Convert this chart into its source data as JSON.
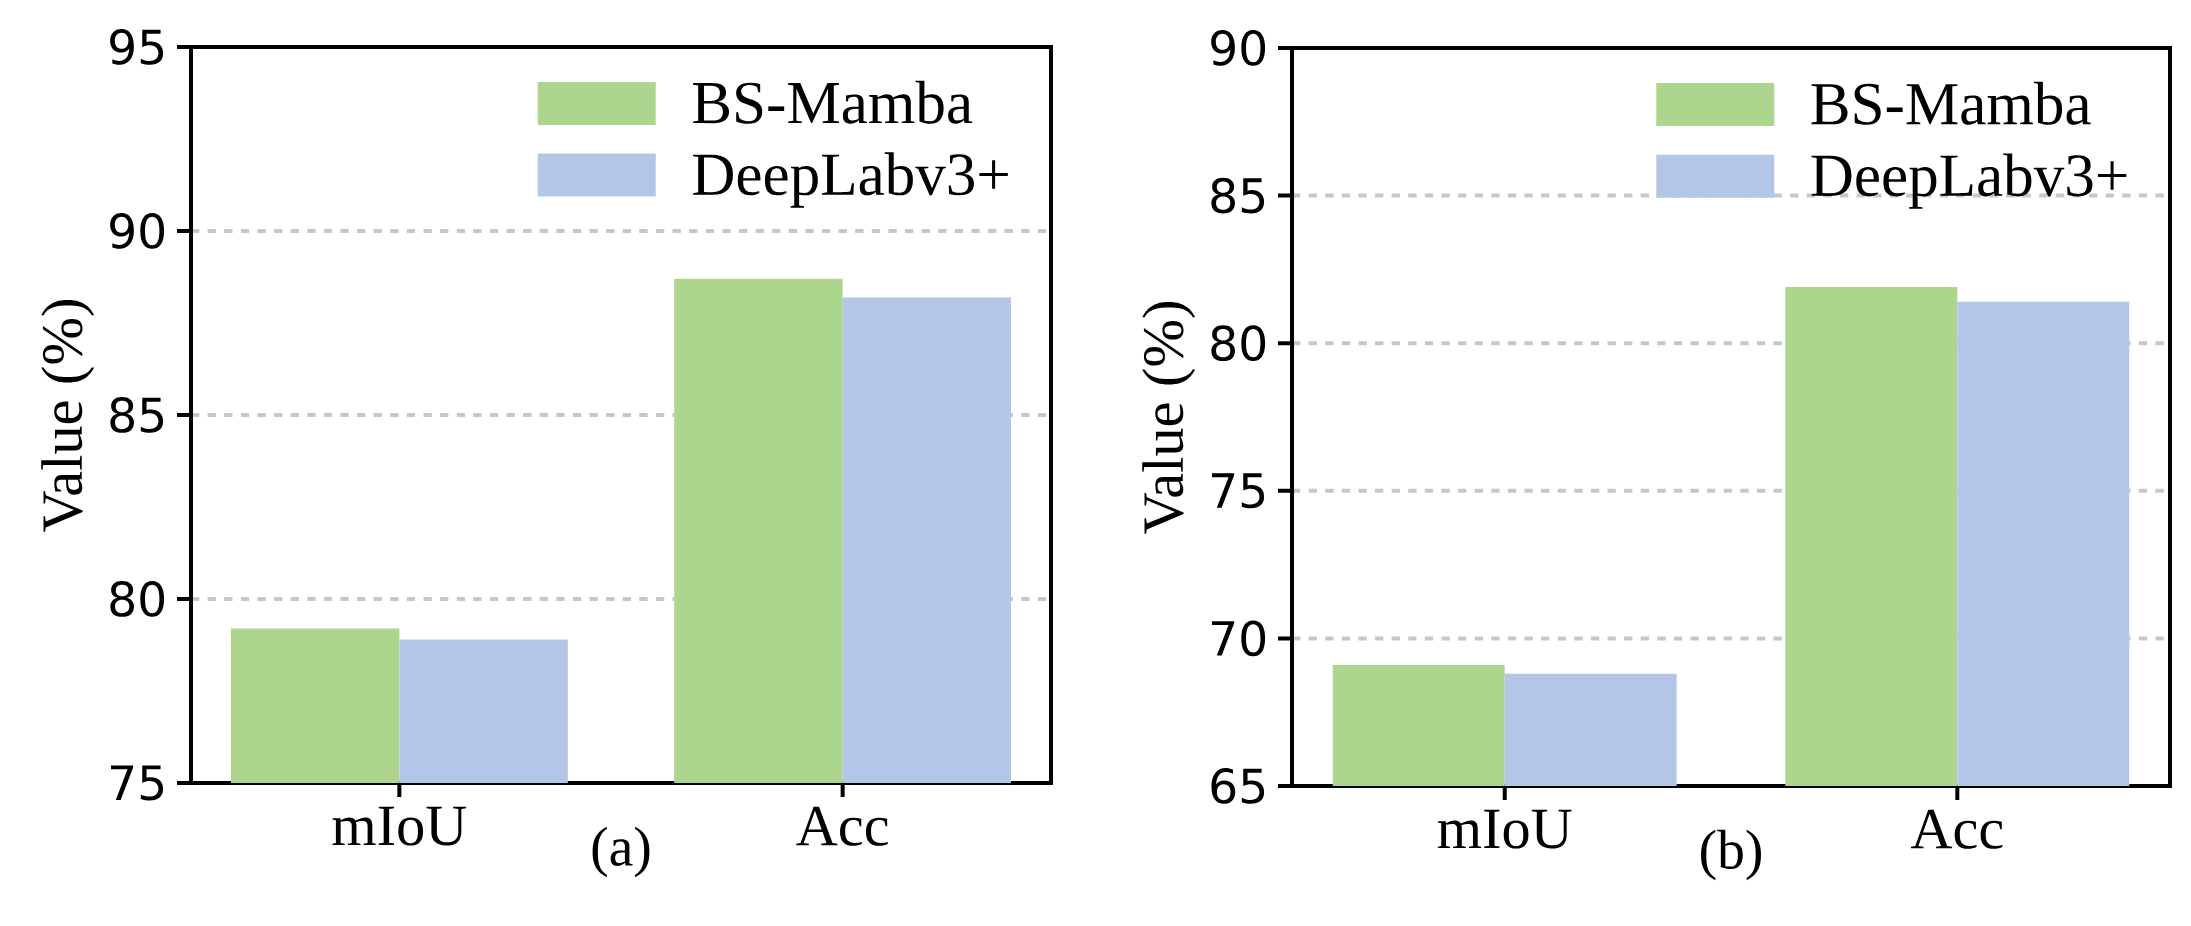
{
  "chart_data": [
    {
      "type": "bar",
      "categories": [
        "mIoU",
        "Acc"
      ],
      "xlabel": "(a)",
      "ylabel": "Value (%)",
      "ylim": [
        75,
        95
      ],
      "yticks": [
        75,
        80,
        85,
        90,
        95
      ],
      "grid": "y",
      "legend": "top right",
      "series": [
        {
          "name": "BS-Mamba",
          "color": "#acd68e",
          "values": [
            79.2,
            88.7
          ]
        },
        {
          "name": "DeepLabv3+",
          "color": "#b4c6e7",
          "values": [
            78.9,
            88.2
          ]
        }
      ]
    },
    {
      "type": "bar",
      "categories": [
        "mIoU",
        "Acc"
      ],
      "xlabel": "(b)",
      "ylabel": "Value (%)",
      "ylim": [
        65,
        90
      ],
      "yticks": [
        65,
        70,
        75,
        80,
        85,
        90
      ],
      "grid": "y",
      "legend": "top right",
      "series": [
        {
          "name": "BS-Mamba",
          "color": "#acd68e",
          "values": [
            69.1,
            81.9
          ]
        },
        {
          "name": "DeepLabv3+",
          "color": "#b4c6e7",
          "values": [
            68.8,
            81.4
          ]
        }
      ]
    }
  ]
}
